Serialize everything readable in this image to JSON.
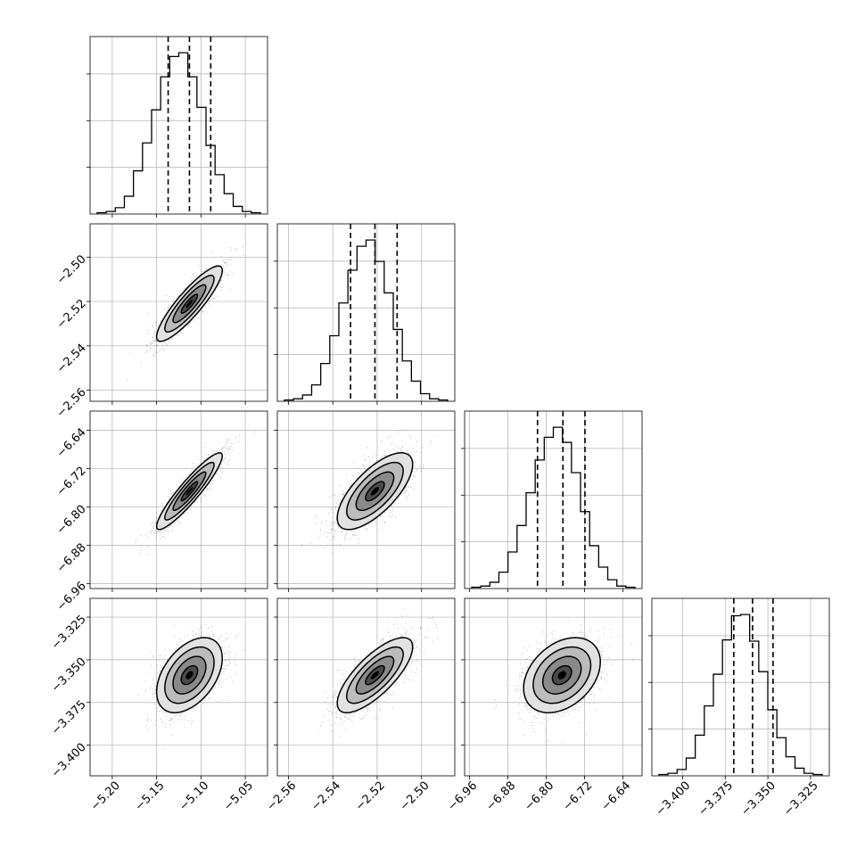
{
  "chart_data": {
    "type": "corner",
    "grid": true,
    "parameters": [
      {
        "range": [
          -5.225,
          -5.025
        ],
        "ticks": [
          "-5.20",
          "-5.15",
          "-5.10",
          "-5.05"
        ],
        "tick_values": [
          -5.2,
          -5.15,
          -5.1,
          -5.05
        ],
        "quantiles": [
          -5.137,
          -5.113,
          -5.089
        ]
      },
      {
        "range": [
          -2.565,
          -2.485
        ],
        "ticks": [
          "-2.56",
          "-2.54",
          "-2.52",
          "-2.50"
        ],
        "tick_values": [
          -2.56,
          -2.54,
          -2.52,
          -2.5
        ],
        "quantiles": [
          -2.532,
          -2.521,
          -2.511
        ]
      },
      {
        "range": [
          -6.97,
          -6.6
        ],
        "ticks": [
          "-6.96",
          "-6.88",
          "-6.80",
          "-6.72",
          "-6.64"
        ],
        "tick_values": [
          -6.96,
          -6.88,
          -6.8,
          -6.72,
          -6.64
        ],
        "quantiles": [
          -6.818,
          -6.765,
          -6.719
        ]
      },
      {
        "range": [
          -3.418,
          -3.314
        ],
        "ticks": [
          "-3.400",
          "-3.375",
          "-3.350",
          "-3.325"
        ],
        "tick_values": [
          -3.4,
          -3.375,
          -3.35,
          -3.325
        ],
        "quantiles": [
          -3.37,
          -3.359,
          -3.347
        ]
      }
    ],
    "histograms": [
      [
        1,
        2,
        5,
        14,
        34,
        56,
        82,
        108,
        124,
        127,
        108,
        84,
        54,
        31,
        16,
        6,
        2,
        1
      ],
      [
        1,
        2,
        5,
        13,
        30,
        52,
        78,
        104,
        123,
        128,
        111,
        86,
        57,
        32,
        16,
        6,
        2,
        1
      ],
      [
        1,
        2,
        5,
        13,
        29,
        50,
        76,
        102,
        120,
        128,
        116,
        92,
        61,
        34,
        17,
        7,
        2,
        1
      ],
      [
        1,
        2,
        5,
        14,
        32,
        55,
        80,
        107,
        126,
        127,
        106,
        82,
        52,
        30,
        15,
        6,
        2,
        1
      ]
    ],
    "pairs": [
      {
        "x": 0,
        "y": 1,
        "mean": [
          -5.113,
          -2.521
        ],
        "sd": [
          0.0185,
          0.0085
        ],
        "corr": 0.88
      },
      {
        "x": 0,
        "y": 2,
        "mean": [
          -5.113,
          -6.767
        ],
        "sd": [
          0.0185,
          0.04
        ],
        "corr": 0.92
      },
      {
        "x": 1,
        "y": 2,
        "mean": [
          -2.521,
          -6.767
        ],
        "sd": [
          0.0085,
          0.04
        ],
        "corr": 0.7
      },
      {
        "x": 0,
        "y": 3,
        "mean": [
          -5.113,
          -3.359
        ],
        "sd": [
          0.0185,
          0.011
        ],
        "corr": 0.45
      },
      {
        "x": 1,
        "y": 3,
        "mean": [
          -2.521,
          -3.359
        ],
        "sd": [
          0.0085,
          0.011
        ],
        "corr": 0.75
      },
      {
        "x": 2,
        "y": 3,
        "mean": [
          -6.767,
          -3.359
        ],
        "sd": [
          0.04,
          0.011
        ],
        "corr": 0.35
      }
    ],
    "contour_levels": [
      0.5,
      1.0,
      1.5,
      2.0
    ],
    "scatter_color": "#000000",
    "line_color": "#000000",
    "grid_color": "#b0b0b0"
  }
}
